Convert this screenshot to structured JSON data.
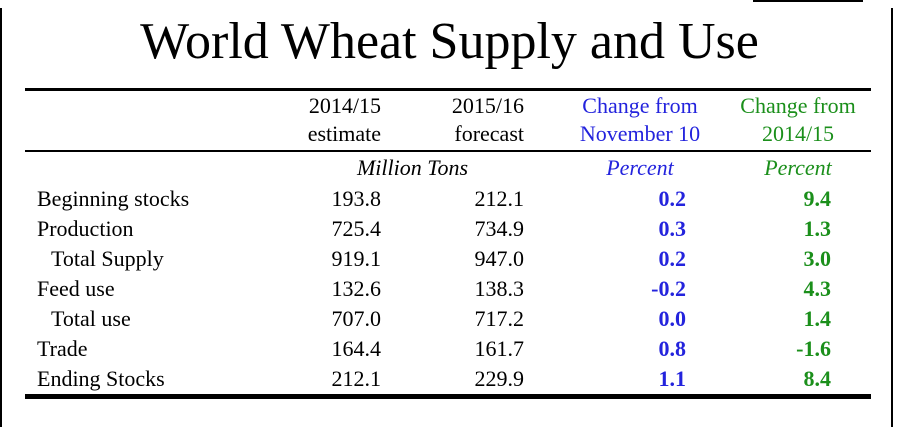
{
  "title": "World Wheat Supply and Use",
  "colors": {
    "change_from_november": "#2323dd",
    "change_from_year": "#1b8f1b",
    "text": "#000000",
    "rule": "#000000"
  },
  "chart_data": {
    "type": "table",
    "title": "World Wheat Supply and Use",
    "columns": [
      {
        "key": "label",
        "header_line1": "",
        "header_line2": ""
      },
      {
        "key": "estimate_2014_15",
        "header_line1": "2014/15",
        "header_line2": "estimate"
      },
      {
        "key": "forecast_2015_16",
        "header_line1": "2015/16",
        "header_line2": "forecast"
      },
      {
        "key": "change_from_november",
        "header_line1": "Change from",
        "header_line2": "November 10"
      },
      {
        "key": "change_from_2014_15",
        "header_line1": "Change from",
        "header_line2": "2014/15"
      }
    ],
    "units_row": {
      "million_tons": "Million Tons",
      "percent_november": "Percent",
      "percent_year": "Percent"
    },
    "rows": [
      {
        "label": "Beginning stocks",
        "indent": false,
        "estimate_2014_15": "193.8",
        "forecast_2015_16": "212.1",
        "change_from_november": "0.2",
        "change_from_2014_15": "9.4"
      },
      {
        "label": "Production",
        "indent": false,
        "estimate_2014_15": "725.4",
        "forecast_2015_16": "734.9",
        "change_from_november": "0.3",
        "change_from_2014_15": "1.3"
      },
      {
        "label": "Total Supply",
        "indent": true,
        "estimate_2014_15": "919.1",
        "forecast_2015_16": "947.0",
        "change_from_november": "0.2",
        "change_from_2014_15": "3.0"
      },
      {
        "label": "Feed use",
        "indent": false,
        "estimate_2014_15": "132.6",
        "forecast_2015_16": "138.3",
        "change_from_november": "-0.2",
        "change_from_2014_15": "4.3"
      },
      {
        "label": "Total use",
        "indent": true,
        "estimate_2014_15": "707.0",
        "forecast_2015_16": "717.2",
        "change_from_november": "0.0",
        "change_from_2014_15": "1.4"
      },
      {
        "label": "Trade",
        "indent": false,
        "estimate_2014_15": "164.4",
        "forecast_2015_16": "161.7",
        "change_from_november": "0.8",
        "change_from_2014_15": "-1.6"
      },
      {
        "label": "Ending Stocks",
        "indent": false,
        "estimate_2014_15": "212.1",
        "forecast_2015_16": "229.9",
        "change_from_november": "1.1",
        "change_from_2014_15": "8.4"
      }
    ]
  }
}
